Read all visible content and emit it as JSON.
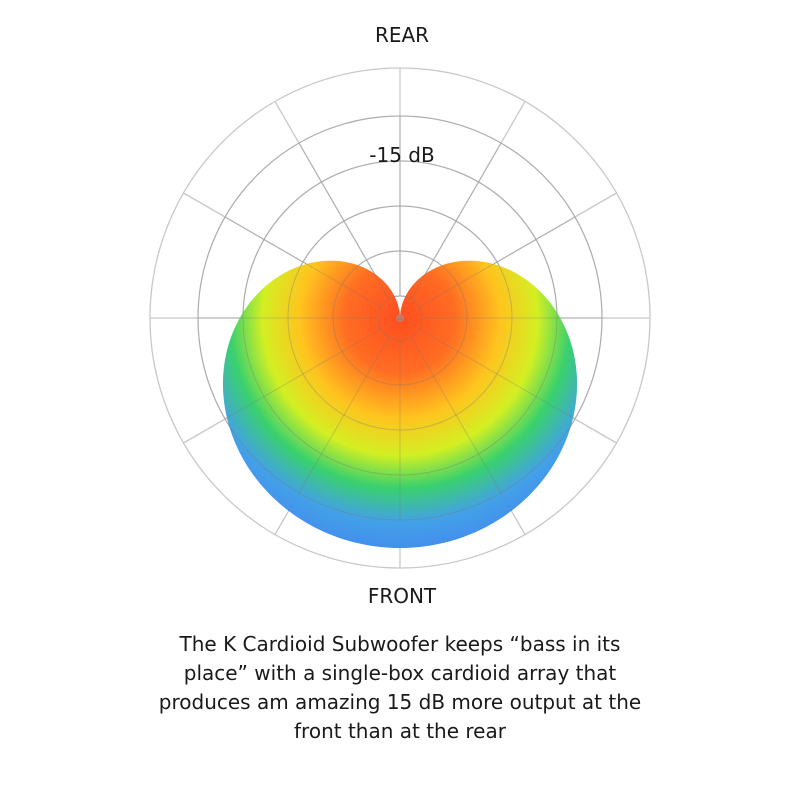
{
  "labels": {
    "top": "REAR",
    "bottom": "FRONT",
    "ring": "-15 dB"
  },
  "caption": {
    "lines": [
      "The K Cardioid Subwoofer keeps “bass in its",
      "place” with a single-box cardioid array that",
      "produces am amazing 15 dB more output at the",
      "front than at the rear"
    ]
  },
  "colors": {
    "grid": "#c8c8c8",
    "gradient_center": "#ff4a1c",
    "gradient_mid": "#ffc21a",
    "gradient_outer": "#d2ef1e",
    "gradient_edge": "#36d06a",
    "gradient_far": "#3f7ff0"
  }
}
